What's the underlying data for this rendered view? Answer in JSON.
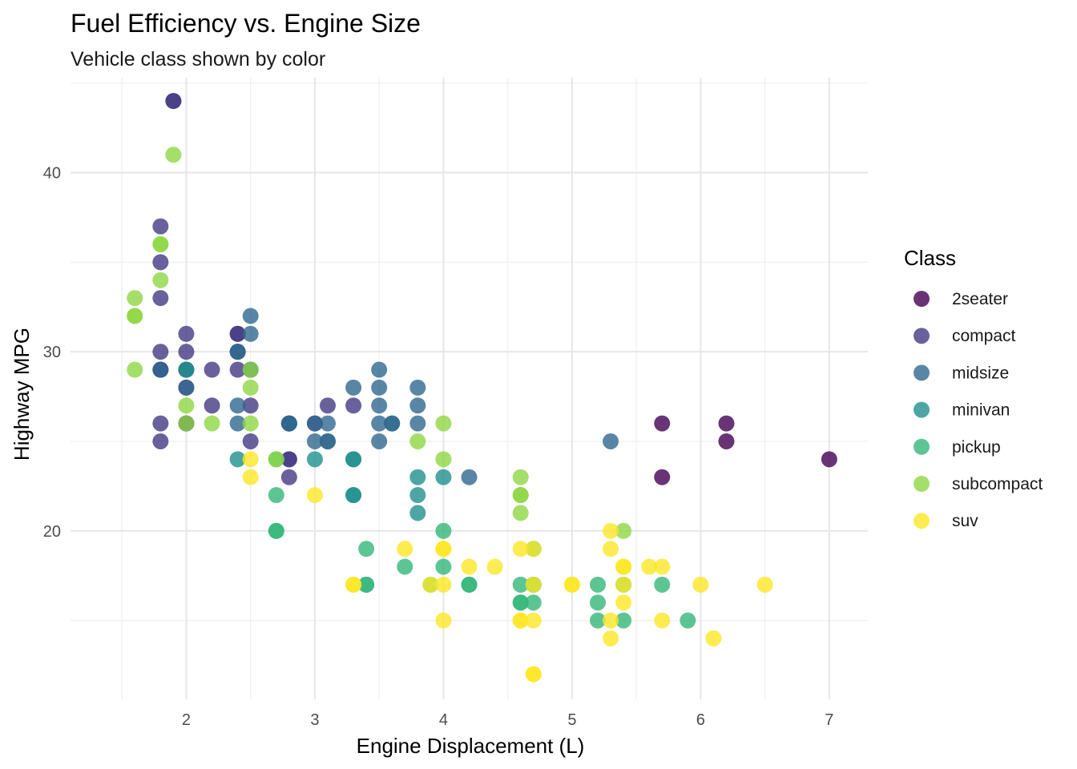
{
  "chart_data": {
    "type": "scatter",
    "title": "Fuel Efficiency vs. Engine Size",
    "subtitle": "Vehicle class shown by color",
    "xlabel": "Engine Displacement (L)",
    "ylabel": "Highway MPG",
    "xlim": [
      1.1,
      7.3
    ],
    "ylim": [
      10.6,
      45.3
    ],
    "x_ticks": [
      2,
      3,
      4,
      5,
      6,
      7
    ],
    "y_ticks": [
      20,
      30,
      40
    ],
    "grid": true,
    "legend": {
      "title": "Class",
      "position": "right"
    },
    "series": [
      {
        "name": "2seater",
        "color": "#440154",
        "points": [
          [
            5.7,
            26
          ],
          [
            5.7,
            23
          ],
          [
            6.2,
            26
          ],
          [
            6.2,
            25
          ],
          [
            7.0,
            24
          ]
        ]
      },
      {
        "name": "compact",
        "color": "#443A83",
        "points": [
          [
            1.8,
            29
          ],
          [
            1.8,
            29
          ],
          [
            2.0,
            31
          ],
          [
            2.0,
            30
          ],
          [
            2.8,
            26
          ],
          [
            2.8,
            26
          ],
          [
            3.1,
            27
          ],
          [
            1.8,
            26
          ],
          [
            1.8,
            25
          ],
          [
            2.0,
            28
          ],
          [
            2.0,
            29
          ],
          [
            2.8,
            24
          ],
          [
            2.8,
            23
          ],
          [
            2.2,
            27
          ],
          [
            2.2,
            29
          ],
          [
            2.4,
            31
          ],
          [
            2.4,
            31
          ],
          [
            3.0,
            26
          ],
          [
            3.3,
            27
          ],
          [
            1.8,
            37
          ],
          [
            1.8,
            35
          ],
          [
            1.8,
            33
          ],
          [
            2.5,
            29
          ],
          [
            2.4,
            29
          ],
          [
            2.4,
            30
          ],
          [
            1.9,
            44
          ],
          [
            1.9,
            44
          ],
          [
            2.0,
            26
          ],
          [
            2.0,
            26
          ],
          [
            2.8,
            24
          ],
          [
            1.8,
            30
          ],
          [
            2.5,
            27
          ],
          [
            2.5,
            25
          ]
        ]
      },
      {
        "name": "midsize",
        "color": "#31688E",
        "points": [
          [
            2.8,
            26
          ],
          [
            3.1,
            25
          ],
          [
            4.2,
            23
          ],
          [
            2.4,
            30
          ],
          [
            2.4,
            26
          ],
          [
            3.1,
            26
          ],
          [
            3.5,
            29
          ],
          [
            3.5,
            28
          ],
          [
            3.6,
            26
          ],
          [
            3.6,
            26
          ],
          [
            3.0,
            26
          ],
          [
            3.3,
            28
          ],
          [
            3.5,
            26
          ],
          [
            3.8,
            28
          ],
          [
            3.8,
            27
          ],
          [
            2.5,
            32
          ],
          [
            2.5,
            31
          ],
          [
            3.5,
            25
          ],
          [
            3.8,
            26
          ],
          [
            5.3,
            25
          ],
          [
            2.4,
            27
          ],
          [
            1.8,
            29
          ],
          [
            2.0,
            29
          ],
          [
            2.0,
            28
          ],
          [
            2.4,
            30
          ],
          [
            2.8,
            26
          ],
          [
            2.8,
            26
          ],
          [
            3.1,
            25
          ],
          [
            3.5,
            27
          ],
          [
            2.5,
            29
          ],
          [
            3.0,
            25
          ]
        ]
      },
      {
        "name": "minivan",
        "color": "#21908C",
        "points": [
          [
            2.4,
            24
          ],
          [
            3.0,
            24
          ],
          [
            3.3,
            22
          ],
          [
            3.3,
            22
          ],
          [
            3.3,
            24
          ],
          [
            3.3,
            24
          ],
          [
            3.8,
            23
          ],
          [
            3.8,
            22
          ],
          [
            3.8,
            21
          ],
          [
            4.0,
            23
          ],
          [
            2.0,
            29
          ]
        ]
      },
      {
        "name": "pickup",
        "color": "#35B779",
        "points": [
          [
            2.7,
            20
          ],
          [
            2.7,
            20
          ],
          [
            2.7,
            22
          ],
          [
            3.4,
            17
          ],
          [
            3.4,
            19
          ],
          [
            3.7,
            18
          ],
          [
            4.0,
            20
          ],
          [
            4.0,
            18
          ],
          [
            4.2,
            17
          ],
          [
            4.2,
            17
          ],
          [
            4.6,
            17
          ],
          [
            4.6,
            16
          ],
          [
            4.7,
            17
          ],
          [
            4.7,
            16
          ],
          [
            4.7,
            19
          ],
          [
            4.7,
            17
          ],
          [
            5.2,
            17
          ],
          [
            5.2,
            15
          ],
          [
            5.2,
            16
          ],
          [
            5.4,
            15
          ],
          [
            5.4,
            17
          ],
          [
            5.7,
            17
          ],
          [
            5.9,
            15
          ],
          [
            3.9,
            17
          ],
          [
            3.4,
            17
          ],
          [
            4.6,
            16
          ],
          [
            2.7,
            24
          ]
        ]
      },
      {
        "name": "subcompact",
        "color": "#8FD744",
        "points": [
          [
            1.6,
            33
          ],
          [
            1.6,
            32
          ],
          [
            1.6,
            32
          ],
          [
            1.6,
            29
          ],
          [
            1.8,
            34
          ],
          [
            1.8,
            36
          ],
          [
            1.8,
            36
          ],
          [
            1.9,
            41
          ],
          [
            2.0,
            26
          ],
          [
            2.0,
            27
          ],
          [
            2.2,
            26
          ],
          [
            2.5,
            26
          ],
          [
            2.5,
            28
          ],
          [
            2.5,
            29
          ],
          [
            2.7,
            24
          ],
          [
            3.8,
            25
          ],
          [
            4.0,
            26
          ],
          [
            4.0,
            24
          ],
          [
            4.6,
            21
          ],
          [
            4.6,
            22
          ],
          [
            4.6,
            23
          ],
          [
            4.6,
            22
          ],
          [
            5.4,
            20
          ]
        ]
      },
      {
        "name": "suv",
        "color": "#FDE725",
        "points": [
          [
            2.5,
            23
          ],
          [
            2.5,
            24
          ],
          [
            3.0,
            22
          ],
          [
            3.3,
            17
          ],
          [
            3.7,
            19
          ],
          [
            3.9,
            17
          ],
          [
            4.0,
            19
          ],
          [
            4.0,
            17
          ],
          [
            4.0,
            15
          ],
          [
            4.2,
            18
          ],
          [
            4.4,
            18
          ],
          [
            4.6,
            19
          ],
          [
            4.6,
            15
          ],
          [
            4.7,
            17
          ],
          [
            4.7,
            15
          ],
          [
            4.7,
            12
          ],
          [
            4.7,
            12
          ],
          [
            4.7,
            19
          ],
          [
            5.0,
            17
          ],
          [
            5.0,
            17
          ],
          [
            5.3,
            20
          ],
          [
            5.3,
            19
          ],
          [
            5.3,
            15
          ],
          [
            5.3,
            14
          ],
          [
            5.4,
            18
          ],
          [
            5.4,
            17
          ],
          [
            5.4,
            16
          ],
          [
            5.6,
            18
          ],
          [
            5.7,
            18
          ],
          [
            5.7,
            15
          ],
          [
            6.1,
            14
          ],
          [
            6.5,
            17
          ],
          [
            6.0,
            17
          ],
          [
            3.3,
            17
          ],
          [
            4.0,
            19
          ],
          [
            4.6,
            15
          ],
          [
            5.4,
            18
          ]
        ]
      }
    ]
  }
}
